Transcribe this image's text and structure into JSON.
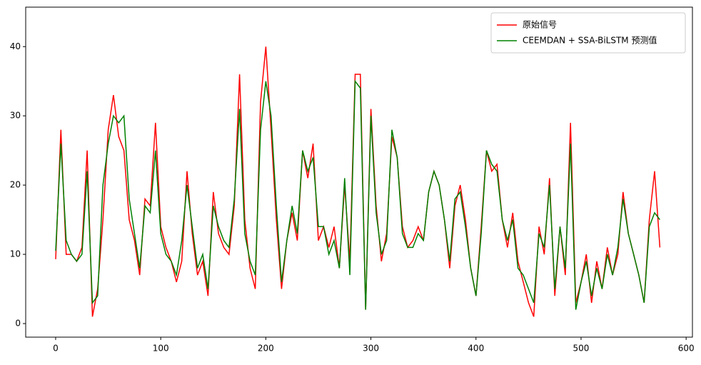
{
  "chart_data": {
    "type": "line",
    "x": [
      0,
      5,
      10,
      15,
      20,
      25,
      30,
      35,
      40,
      45,
      50,
      55,
      60,
      65,
      70,
      75,
      80,
      85,
      90,
      95,
      100,
      105,
      110,
      115,
      120,
      125,
      130,
      135,
      140,
      145,
      150,
      155,
      160,
      165,
      170,
      175,
      180,
      185,
      190,
      195,
      200,
      205,
      210,
      215,
      220,
      225,
      230,
      235,
      240,
      245,
      250,
      255,
      260,
      265,
      270,
      275,
      280,
      285,
      290,
      295,
      300,
      305,
      310,
      315,
      320,
      325,
      330,
      335,
      340,
      345,
      350,
      355,
      360,
      365,
      370,
      375,
      380,
      385,
      390,
      395,
      400,
      405,
      410,
      415,
      420,
      425,
      430,
      435,
      440,
      445,
      450,
      455,
      460,
      465,
      470,
      475,
      480,
      485,
      490,
      495,
      500,
      505,
      510,
      515,
      520,
      525,
      530,
      535,
      540,
      545,
      550,
      555,
      560,
      565,
      570,
      575
    ],
    "series": [
      {
        "name": "原始信号",
        "color": "#ff0000",
        "values": [
          9.3,
          28,
          10,
          10,
          9,
          11,
          25,
          1,
          5,
          15,
          28,
          33,
          27,
          25,
          15,
          12,
          7,
          18,
          17,
          29,
          14,
          11,
          9,
          6,
          9,
          22,
          13,
          7,
          9,
          4,
          19,
          13,
          11,
          10,
          17,
          36,
          15,
          8,
          5,
          32,
          40,
          28,
          15,
          5,
          12,
          16,
          12,
          25,
          21,
          26,
          12,
          14,
          11,
          14,
          8,
          20,
          9,
          36,
          36,
          2,
          31,
          17,
          9,
          13,
          27,
          24,
          14,
          11,
          12,
          14,
          12,
          19,
          22,
          20,
          15,
          8,
          17,
          20,
          15,
          8,
          4,
          14,
          25,
          22,
          23,
          15,
          11,
          16,
          9,
          6,
          3,
          1,
          14,
          10,
          21,
          4,
          14,
          7,
          29,
          3,
          6,
          10,
          3,
          9,
          5,
          11,
          7,
          10,
          19,
          13,
          10,
          7,
          3,
          15,
          22,
          11
        ]
      },
      {
        "name": "CEEMDAN + SSA-BiLSTM 预测值",
        "color": "#008000",
        "values": [
          10.5,
          26,
          12,
          10,
          9,
          10,
          22,
          3,
          4,
          20,
          26,
          30,
          29,
          30,
          18,
          13,
          8,
          17,
          16,
          25,
          13,
          10,
          9,
          7,
          12,
          20,
          14,
          8,
          10,
          5,
          17,
          14,
          12,
          11,
          18,
          31,
          13,
          9,
          7,
          28,
          35,
          30,
          17,
          6,
          12,
          17,
          13,
          25,
          22,
          24,
          14,
          14,
          10,
          12,
          8,
          21,
          7,
          35,
          34,
          2,
          30,
          16,
          10,
          12,
          28,
          24,
          13,
          11,
          11,
          13,
          12,
          19,
          22,
          20,
          15,
          9,
          18,
          19,
          14,
          8,
          4,
          13,
          25,
          23,
          22,
          15,
          12,
          15,
          8,
          7,
          5,
          3,
          13,
          11,
          20,
          5,
          14,
          8,
          26,
          2,
          6,
          9,
          4,
          8,
          5,
          10,
          7,
          11,
          18,
          13,
          10,
          7,
          3,
          14,
          16,
          15
        ]
      }
    ],
    "xlim": [
      -28.5,
      606
    ],
    "ylim": [
      -1.96,
      45.7
    ],
    "xticks": [
      0,
      100,
      200,
      300,
      400,
      500,
      600
    ],
    "yticks": [
      0,
      10,
      20,
      30,
      40
    ],
    "legend": "upper right"
  }
}
